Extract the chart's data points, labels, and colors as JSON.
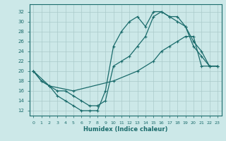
{
  "xlabel": "Humidex (Indice chaleur)",
  "ylabel": "",
  "bg_color": "#cce8e8",
  "line_color": "#1a6b6b",
  "xlim": [
    -0.5,
    23.5
  ],
  "ylim": [
    11,
    33.5
  ],
  "xticks": [
    0,
    1,
    2,
    3,
    4,
    5,
    6,
    7,
    8,
    9,
    10,
    11,
    12,
    13,
    14,
    15,
    16,
    17,
    18,
    19,
    20,
    21,
    22,
    23
  ],
  "yticks": [
    12,
    14,
    16,
    18,
    20,
    22,
    24,
    26,
    28,
    30,
    32
  ],
  "grid_color": "#aacaca",
  "curve1_x": [
    0,
    1,
    2,
    3,
    4,
    5,
    6,
    7,
    8,
    9,
    10,
    11,
    12,
    13,
    14,
    15,
    16,
    17,
    18,
    19,
    20,
    21,
    22,
    23
  ],
  "curve1_y": [
    20,
    18,
    17,
    15,
    14,
    13,
    12,
    12,
    12,
    16,
    25,
    28,
    30,
    31,
    29,
    32,
    32,
    31,
    31,
    29,
    26,
    24,
    21,
    21
  ],
  "curve2_x": [
    0,
    1,
    2,
    3,
    4,
    5,
    6,
    7,
    8,
    9,
    10,
    11,
    12,
    13,
    14,
    15,
    16,
    17,
    18,
    19,
    20,
    21,
    22,
    23
  ],
  "curve2_y": [
    20,
    18,
    17,
    16,
    16,
    15,
    14,
    13,
    13,
    14,
    21,
    22,
    23,
    25,
    27,
    31,
    32,
    31,
    30,
    29,
    25,
    23,
    21,
    21
  ],
  "curve3_x": [
    0,
    2,
    5,
    10,
    13,
    15,
    16,
    17,
    18,
    19,
    20,
    21,
    22,
    23
  ],
  "curve3_y": [
    20,
    17,
    16,
    18,
    20,
    22,
    24,
    25,
    26,
    27,
    27,
    21,
    21,
    21
  ]
}
